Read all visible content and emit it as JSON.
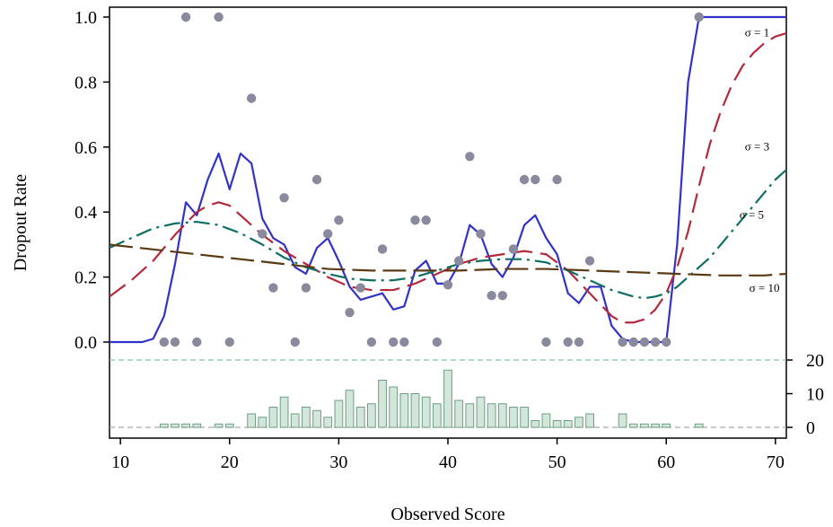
{
  "chart_data": {
    "type": "line",
    "xlabel": "Observed Score",
    "ylabel": "Dropout Rate",
    "xlim": [
      9,
      71
    ],
    "ylim": [
      0,
      1
    ],
    "x_ticks": [
      10,
      20,
      30,
      40,
      50,
      60,
      70
    ],
    "y_ticks": [
      0.0,
      0.2,
      0.4,
      0.6,
      0.8,
      1.0
    ],
    "y_tick_labels": [
      "0.0",
      "0.2",
      "0.4",
      "0.6",
      "0.8",
      "1.0"
    ],
    "count_ticks": [
      0,
      10,
      20
    ],
    "grid": false,
    "points": {
      "color": "#8a8a9e",
      "x": [
        14,
        15,
        16,
        17,
        19,
        20,
        22,
        23,
        24,
        25,
        26,
        27,
        28,
        29,
        30,
        31,
        32,
        33,
        34,
        35,
        36,
        37,
        38,
        39,
        40,
        41,
        42,
        43,
        44,
        45,
        46,
        47,
        48,
        49,
        50,
        51,
        52,
        53,
        56,
        57,
        58,
        59,
        60,
        63
      ],
      "y": [
        0,
        0,
        1.0,
        0,
        1.0,
        0,
        0.75,
        0.333,
        0.167,
        0.444,
        0,
        0.167,
        0.5,
        0.333,
        0.375,
        0.091,
        0.167,
        0,
        0.286,
        0,
        0,
        0.375,
        0.375,
        0,
        0.176,
        0.25,
        0.571,
        0.333,
        0.143,
        0.143,
        0.286,
        0.5,
        0.5,
        0,
        0.5,
        0,
        0,
        0.25,
        0,
        0,
        0,
        0,
        0,
        1.0
      ]
    },
    "series": [
      {
        "name": "σ = 1",
        "color": "#3232c8",
        "dash": "",
        "label_at": [
          67.2,
          0.94
        ],
        "x": [
          9,
          10,
          11,
          12,
          13,
          14,
          15,
          16,
          17,
          18,
          19,
          20,
          21,
          22,
          23,
          24,
          25,
          26,
          27,
          28,
          29,
          30,
          31,
          32,
          33,
          34,
          35,
          36,
          37,
          38,
          39,
          40,
          41,
          42,
          43,
          44,
          45,
          46,
          47,
          48,
          49,
          50,
          51,
          52,
          53,
          54,
          55,
          56,
          57,
          58,
          59,
          60,
          61,
          62,
          63,
          64,
          65,
          66,
          67,
          68,
          69,
          70,
          71
        ],
        "y": [
          0,
          0,
          0,
          0,
          0.01,
          0.08,
          0.24,
          0.43,
          0.39,
          0.5,
          0.58,
          0.47,
          0.58,
          0.55,
          0.38,
          0.32,
          0.3,
          0.23,
          0.21,
          0.29,
          0.32,
          0.25,
          0.17,
          0.13,
          0.14,
          0.15,
          0.1,
          0.11,
          0.22,
          0.25,
          0.18,
          0.18,
          0.24,
          0.36,
          0.33,
          0.24,
          0.2,
          0.26,
          0.36,
          0.39,
          0.32,
          0.27,
          0.15,
          0.12,
          0.17,
          0.17,
          0.05,
          0.01,
          0,
          0,
          0,
          0,
          0.3,
          0.8,
          1.0,
          1.0,
          1.0,
          1.0,
          1.0,
          1.0,
          1.0,
          1.0,
          1.0
        ]
      },
      {
        "name": "σ = 3",
        "color": "#b22a3c",
        "dash": "22,9",
        "label_at": [
          67.2,
          0.59
        ],
        "x": [
          9,
          11,
          13,
          15,
          17,
          18,
          19,
          20,
          21,
          23,
          25,
          27,
          29,
          31,
          33,
          35,
          37,
          39,
          41,
          43,
          45,
          47,
          49,
          51,
          53,
          55,
          56,
          57,
          58,
          59,
          60,
          61,
          62,
          63,
          64,
          65,
          66,
          67,
          68,
          69,
          70,
          71
        ],
        "y": [
          0.14,
          0.19,
          0.25,
          0.33,
          0.4,
          0.42,
          0.43,
          0.42,
          0.39,
          0.33,
          0.28,
          0.24,
          0.2,
          0.17,
          0.16,
          0.16,
          0.18,
          0.21,
          0.24,
          0.26,
          0.27,
          0.28,
          0.27,
          0.22,
          0.15,
          0.08,
          0.06,
          0.06,
          0.07,
          0.1,
          0.15,
          0.23,
          0.34,
          0.48,
          0.61,
          0.71,
          0.79,
          0.85,
          0.89,
          0.92,
          0.94,
          0.95
        ]
      },
      {
        "name": "σ = 5",
        "color": "#0e6e62",
        "dash": "18,6,3,6",
        "label_at": [
          66.7,
          0.38
        ],
        "x": [
          9,
          11,
          13,
          15,
          17,
          19,
          21,
          23,
          25,
          27,
          29,
          31,
          33,
          35,
          37,
          39,
          41,
          43,
          45,
          47,
          49,
          51,
          53,
          55,
          57,
          58,
          59,
          60,
          61,
          62,
          63,
          64,
          65,
          66,
          67,
          68,
          69,
          70,
          71
        ],
        "y": [
          0.29,
          0.32,
          0.35,
          0.365,
          0.37,
          0.36,
          0.335,
          0.3,
          0.26,
          0.23,
          0.21,
          0.195,
          0.19,
          0.19,
          0.2,
          0.22,
          0.24,
          0.25,
          0.255,
          0.255,
          0.245,
          0.22,
          0.19,
          0.16,
          0.14,
          0.135,
          0.14,
          0.15,
          0.17,
          0.2,
          0.23,
          0.26,
          0.3,
          0.34,
          0.38,
          0.42,
          0.46,
          0.5,
          0.53
        ]
      },
      {
        "name": "σ = 10",
        "color": "#5a3a12",
        "dash": "26,8",
        "label_at": [
          67.6,
          0.155
        ],
        "x": [
          9,
          13,
          17,
          21,
          25,
          29,
          33,
          37,
          41,
          45,
          49,
          53,
          57,
          61,
          65,
          69,
          71
        ],
        "y": [
          0.3,
          0.285,
          0.27,
          0.255,
          0.24,
          0.225,
          0.22,
          0.22,
          0.22,
          0.225,
          0.225,
          0.22,
          0.215,
          0.21,
          0.205,
          0.205,
          0.21
        ]
      }
    ],
    "histogram": {
      "color": "#d3e6da",
      "edge": "#6f9e85",
      "x": [
        14,
        15,
        16,
        17,
        19,
        20,
        22,
        23,
        24,
        25,
        26,
        27,
        28,
        29,
        30,
        31,
        32,
        33,
        34,
        35,
        36,
        37,
        38,
        39,
        40,
        41,
        42,
        43,
        44,
        45,
        46,
        47,
        48,
        49,
        50,
        51,
        52,
        53,
        56,
        57,
        58,
        59,
        60,
        63
      ],
      "counts": [
        1,
        1,
        1,
        1,
        1,
        1,
        4,
        3,
        6,
        9,
        4,
        6,
        5,
        3,
        8,
        11,
        6,
        7,
        14,
        12,
        10,
        10,
        9,
        7,
        17,
        8,
        7,
        9,
        7,
        7,
        6,
        6,
        2,
        4,
        2,
        2,
        3,
        4,
        4,
        1,
        1,
        1,
        1,
        1
      ],
      "ref_line_top": 20,
      "ref_line_top_color": "#7fc3a6",
      "ref_line_bottom_color": "#a8a8b0"
    }
  }
}
